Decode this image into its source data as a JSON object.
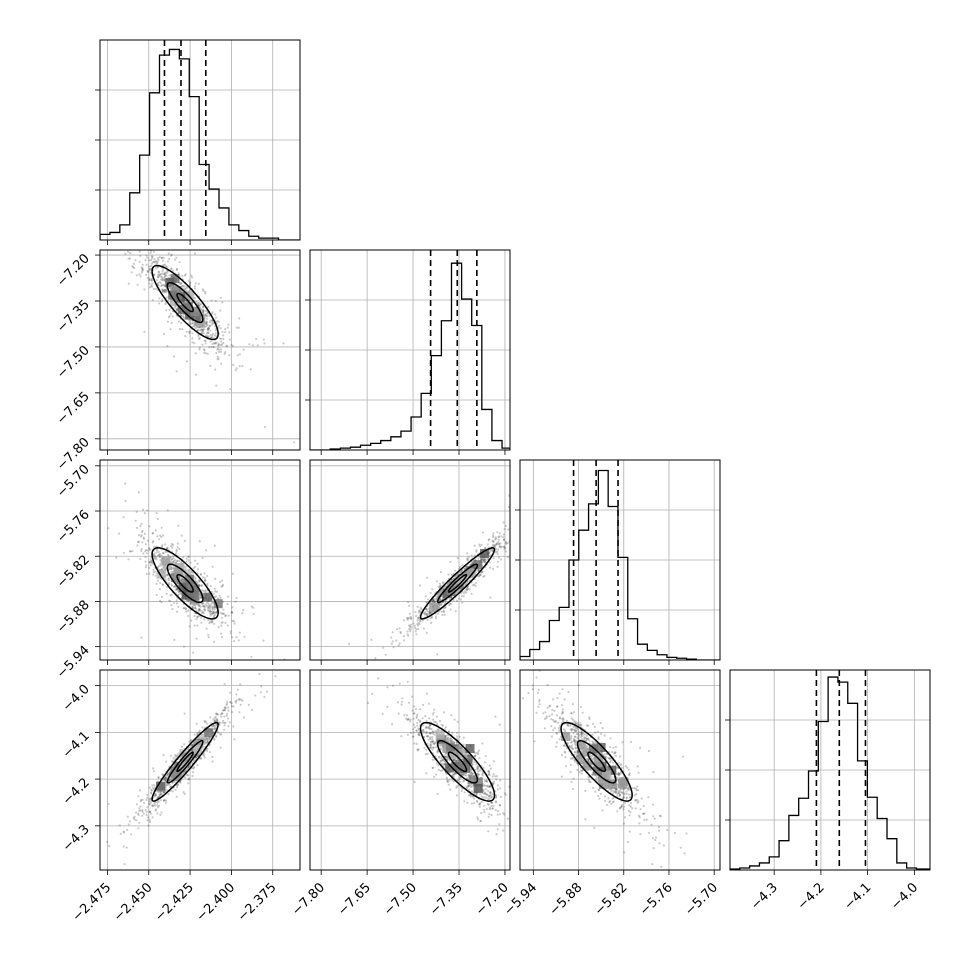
{
  "chart_data": {
    "type": "corner",
    "grid": true,
    "parameters": [
      {
        "range": [
          -2.4795,
          -2.3585
        ],
        "ticks": [
          -2.475,
          -2.45,
          -2.425,
          -2.4,
          -2.375
        ],
        "tick_labels": [
          "−2.475",
          "−2.450",
          "−2.425",
          "−2.400",
          "−2.375"
        ],
        "quantiles": [
          -2.4405,
          -2.4305,
          -2.4155
        ],
        "hist_bins": [
          -2.4795,
          -2.4735,
          -2.4675,
          -2.4615,
          -2.4555,
          -2.4495,
          -2.4435,
          -2.4375,
          -2.4315,
          -2.4255,
          -2.4195,
          -2.4135,
          -2.4075,
          -2.4015,
          -2.3955,
          -2.3895,
          -2.3835,
          -2.3775,
          -2.3715,
          -2.3655,
          -2.3585
        ],
        "hist_counts": [
          3,
          4,
          8,
          25,
          45,
          78,
          98,
          101,
          96,
          76,
          40,
          27,
          17,
          8,
          5,
          2,
          1,
          1,
          0,
          0
        ],
        "hist_max": 106,
        "mode": -2.428
      },
      {
        "range": [
          -7.8365,
          -7.1835
        ],
        "ticks": [
          -7.8,
          -7.65,
          -7.5,
          -7.35,
          -7.2
        ],
        "tick_labels": [
          "−7.80",
          "−7.65",
          "−7.50",
          "−7.35",
          "−7.20"
        ],
        "quantiles": [
          -7.4427,
          -7.3557,
          -7.2917
        ],
        "hist_bins": [
          -7.8365,
          -7.8035,
          -7.7705,
          -7.7375,
          -7.7045,
          -7.6715,
          -7.6385,
          -7.6055,
          -7.5725,
          -7.5395,
          -7.5065,
          -7.4735,
          -7.4405,
          -7.4075,
          -7.3745,
          -7.3415,
          -7.3085,
          -7.2755,
          -7.2425,
          -7.2095,
          -7.1835
        ],
        "hist_counts": [
          0,
          0,
          1,
          2,
          3,
          5,
          7,
          10,
          14,
          20,
          35,
          60,
          100,
          137,
          198,
          160,
          132,
          43,
          10,
          2
        ],
        "hist_max": 212,
        "mode": -7.355
      },
      {
        "range": [
          -5.9577,
          -5.6923
        ],
        "ticks": [
          -5.94,
          -5.88,
          -5.82,
          -5.76,
          -5.7
        ],
        "tick_labels": [
          "−5.94",
          "−5.88",
          "−5.82",
          "−5.76",
          "−5.70"
        ],
        "quantiles": [
          -5.8866,
          -5.8567,
          -5.8276
        ],
        "hist_bins": [
          -5.9577,
          -5.9447,
          -5.9317,
          -5.9187,
          -5.9057,
          -5.8927,
          -5.8797,
          -5.8667,
          -5.8537,
          -5.8407,
          -5.8277,
          -5.8147,
          -5.8017,
          -5.7887,
          -5.7757,
          -5.7627,
          -5.7497,
          -5.7367,
          -5.7237,
          -5.7107,
          -5.6923
        ],
        "hist_counts": [
          4,
          12,
          21,
          45,
          60,
          114,
          148,
          178,
          216,
          175,
          117,
          47,
          18,
          11,
          6,
          3,
          2,
          1,
          0,
          0
        ],
        "hist_max": 228,
        "mode": -5.856
      },
      {
        "range": [
          -4.3945,
          -3.9665
        ],
        "ticks": [
          -4.3,
          -4.2,
          -4.1,
          -4.0
        ],
        "tick_labels": [
          "−4.3",
          "−4.2",
          "−4.1",
          "−4.0"
        ],
        "quantiles": [
          -4.2096,
          -4.1606,
          -4.1046
        ],
        "hist_bins": [
          -4.3945,
          -4.3735,
          -4.3525,
          -4.3315,
          -4.3105,
          -4.2895,
          -4.2685,
          -4.2475,
          -4.2265,
          -4.2055,
          -4.1845,
          -4.1635,
          -4.1425,
          -4.1215,
          -4.1005,
          -4.0795,
          -4.0585,
          -4.0375,
          -4.0165,
          -3.9955,
          -3.9665
        ],
        "hist_counts": [
          1,
          2,
          4,
          7,
          13,
          29,
          54,
          71,
          98,
          147,
          191,
          186,
          165,
          108,
          72,
          51,
          31,
          7,
          2,
          1
        ],
        "hist_max": 198,
        "mode": -4.163
      }
    ],
    "pairs": [
      {
        "x": 0,
        "y": 1,
        "rho": -0.85,
        "contour_levels": [
          0.39,
          0.86,
          1.6
        ]
      },
      {
        "x": 0,
        "y": 2,
        "rho": -0.82,
        "contour_levels": [
          0.39,
          0.86,
          1.6
        ]
      },
      {
        "x": 1,
        "y": 2,
        "rho": 0.95,
        "contour_levels": [
          0.39,
          0.86,
          1.6
        ]
      },
      {
        "x": 0,
        "y": 3,
        "rho": 0.95,
        "contour_levels": [
          0.39,
          0.86,
          1.6
        ]
      },
      {
        "x": 1,
        "y": 3,
        "rho": -0.85,
        "contour_levels": [
          0.39,
          0.86,
          1.6
        ]
      },
      {
        "x": 2,
        "y": 3,
        "rho": -0.85,
        "contour_levels": [
          0.39,
          0.86,
          1.6
        ]
      }
    ],
    "sample_points": 900
  }
}
